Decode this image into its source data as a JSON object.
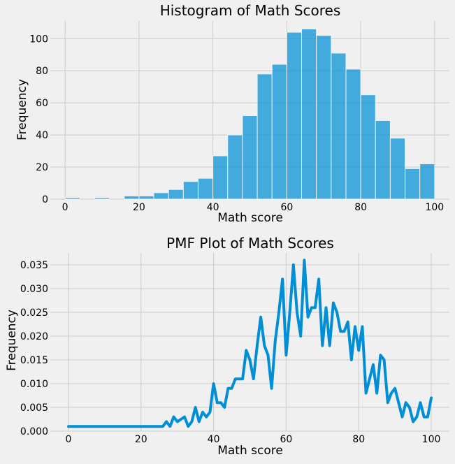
{
  "chart_data": [
    {
      "type": "bar",
      "title": "Histogram of Math Scores",
      "xlabel": "Math score",
      "ylabel": "Frequency",
      "xlim": [
        -4,
        104
      ],
      "ylim": [
        0,
        111
      ],
      "xticks": [
        0,
        20,
        40,
        60,
        80,
        100
      ],
      "yticks": [
        0,
        20,
        40,
        60,
        80,
        100
      ],
      "grid": true,
      "bin_width": 4,
      "bin_edges": [
        0,
        4,
        8,
        12,
        16,
        20,
        24,
        28,
        32,
        36,
        40,
        44,
        48,
        52,
        56,
        60,
        64,
        68,
        72,
        76,
        80,
        84,
        88,
        92,
        96,
        100
      ],
      "values": [
        1,
        0,
        1,
        0,
        2,
        2,
        4,
        6,
        11,
        13,
        27,
        40,
        52,
        78,
        84,
        104,
        106,
        102,
        91,
        81,
        65,
        49,
        38,
        19,
        22
      ],
      "color": "#008fd5"
    },
    {
      "type": "line",
      "title": "PMF Plot of Math Scores",
      "xlabel": "Math score",
      "ylabel": "Frequency",
      "xlim": [
        -5,
        105
      ],
      "ylim": [
        0,
        0.0375
      ],
      "xticks": [
        0,
        20,
        40,
        60,
        80,
        100
      ],
      "yticks": [
        0.0,
        0.005,
        0.01,
        0.015,
        0.02,
        0.025,
        0.03,
        0.035
      ],
      "ytick_labels": [
        "0.000",
        "0.005",
        "0.010",
        "0.015",
        "0.020",
        "0.025",
        "0.030",
        "0.035"
      ],
      "grid": true,
      "color": "#008fd5",
      "x": [
        0,
        26,
        27,
        28,
        29,
        30,
        31,
        32,
        33,
        34,
        35,
        36,
        37,
        38,
        39,
        40,
        41,
        42,
        43,
        44,
        45,
        46,
        47,
        48,
        49,
        50,
        51,
        52,
        53,
        54,
        55,
        56,
        57,
        58,
        59,
        60,
        61,
        62,
        63,
        64,
        65,
        66,
        67,
        68,
        69,
        70,
        71,
        72,
        73,
        74,
        75,
        76,
        77,
        78,
        79,
        80,
        81,
        82,
        83,
        84,
        85,
        86,
        87,
        88,
        89,
        90,
        91,
        92,
        93,
        94,
        95,
        96,
        97,
        98,
        99,
        100
      ],
      "y": [
        0.001,
        0.001,
        0.002,
        0.001,
        0.003,
        0.002,
        0.0025,
        0.003,
        0.001,
        0.002,
        0.005,
        0.002,
        0.004,
        0.003,
        0.004,
        0.01,
        0.006,
        0.006,
        0.005,
        0.009,
        0.009,
        0.011,
        0.011,
        0.011,
        0.017,
        0.015,
        0.011,
        0.018,
        0.024,
        0.018,
        0.016,
        0.009,
        0.019,
        0.025,
        0.032,
        0.016,
        0.025,
        0.035,
        0.025,
        0.02,
        0.036,
        0.024,
        0.026,
        0.026,
        0.032,
        0.018,
        0.026,
        0.018,
        0.027,
        0.025,
        0.021,
        0.021,
        0.023,
        0.015,
        0.022,
        0.017,
        0.022,
        0.008,
        0.011,
        0.014,
        0.008,
        0.016,
        0.015,
        0.006,
        0.008,
        0.009,
        0.006,
        0.003,
        0.006,
        0.005,
        0.002,
        0.003,
        0.006,
        0.003,
        0.003,
        0.007
      ]
    }
  ]
}
